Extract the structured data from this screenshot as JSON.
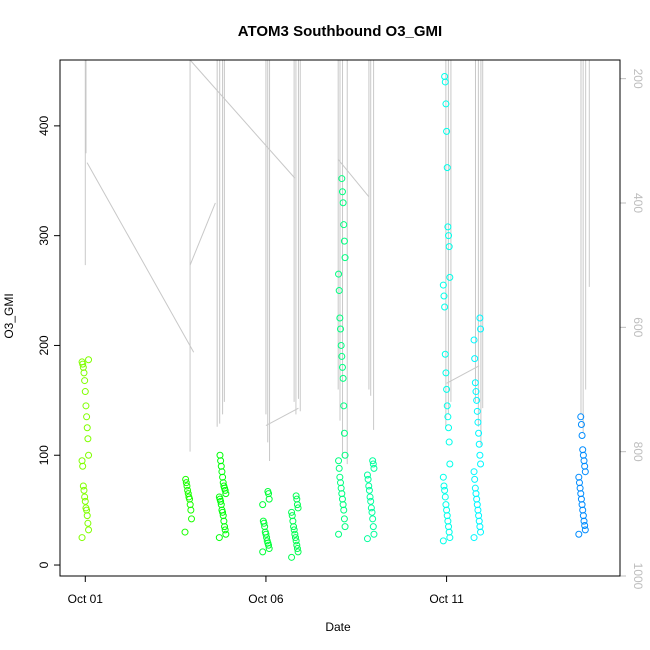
{
  "chart_data": {
    "type": "scatter",
    "title": "ATOM3 Southbound O3_GMI",
    "xlabel": "Date",
    "ylabel": "O3_GMI",
    "x_ticks": [
      "Oct 01",
      "Oct 06",
      "Oct 11"
    ],
    "x_tick_days": [
      1,
      6,
      11
    ],
    "xlim_days": [
      0.3,
      15.8
    ],
    "y_ticks": [
      0,
      100,
      200,
      300,
      400
    ],
    "ylim": [
      -10,
      460
    ],
    "right_axis": {
      "ticks": [
        200,
        400,
        600,
        800,
        1000
      ],
      "range": [
        170,
        1000
      ],
      "inverted": true,
      "color": "#bdbdbd"
    },
    "grid": false,
    "legend": "none",
    "colors": {
      "profile_line": "#c8c8c8",
      "points_early": "#7fff00",
      "points_mid": "#00ff66",
      "points_late": "#00ffff",
      "points_end": "#0099ff"
    },
    "series": [
      {
        "day": 1.0,
        "values": [
          25,
          32,
          38,
          45,
          50,
          52,
          58,
          62,
          68,
          72,
          90,
          95,
          100,
          115,
          125,
          135,
          145,
          158,
          168,
          175,
          180,
          183,
          185,
          187
        ]
      },
      {
        "day": 3.85,
        "values": [
          30,
          42,
          50,
          55,
          60,
          62,
          65,
          68,
          72,
          75,
          78
        ]
      },
      {
        "day": 4.8,
        "values": [
          25,
          28,
          32,
          35,
          40,
          45,
          48,
          50,
          55,
          58,
          60,
          62,
          65,
          68,
          70,
          72,
          75,
          80,
          85,
          90,
          95,
          100
        ]
      },
      {
        "day": 6.0,
        "values": [
          12,
          15,
          18,
          20,
          22,
          25,
          28,
          30,
          35,
          38,
          40,
          55,
          60,
          65,
          67
        ]
      },
      {
        "day": 6.8,
        "values": [
          7,
          12,
          15,
          18,
          22,
          25,
          28,
          32,
          35,
          40,
          45,
          48,
          52,
          55,
          60,
          63
        ]
      },
      {
        "day": 8.1,
        "values": [
          28,
          35,
          42,
          50,
          55,
          60,
          65,
          70,
          75,
          80,
          88,
          95,
          100,
          120,
          145,
          170,
          180,
          190,
          200,
          215,
          225,
          250,
          265,
          280,
          295,
          310,
          330,
          340,
          352
        ]
      },
      {
        "day": 8.9,
        "values": [
          24,
          28,
          35,
          42,
          48,
          52,
          58,
          62,
          68,
          72,
          78,
          82,
          88,
          92,
          95
        ]
      },
      {
        "day": 11.0,
        "values": [
          22,
          25,
          30,
          35,
          40,
          45,
          50,
          55,
          62,
          68,
          72,
          80,
          92,
          112,
          125,
          135,
          145,
          160,
          175,
          192,
          235,
          245,
          255,
          262,
          290,
          300,
          308,
          362,
          395,
          420,
          440,
          445
        ]
      },
      {
        "day": 11.85,
        "values": [
          25,
          30,
          35,
          40,
          45,
          50,
          55,
          60,
          65,
          70,
          78,
          85,
          92,
          100,
          110,
          120,
          130,
          140,
          150,
          158,
          166,
          188,
          205,
          215,
          225
        ]
      },
      {
        "day": 14.75,
        "values": [
          28,
          32,
          36,
          40,
          45,
          50,
          55,
          60,
          65,
          70,
          75,
          80,
          85,
          90,
          95,
          100,
          105,
          118,
          128,
          135
        ]
      }
    ]
  }
}
